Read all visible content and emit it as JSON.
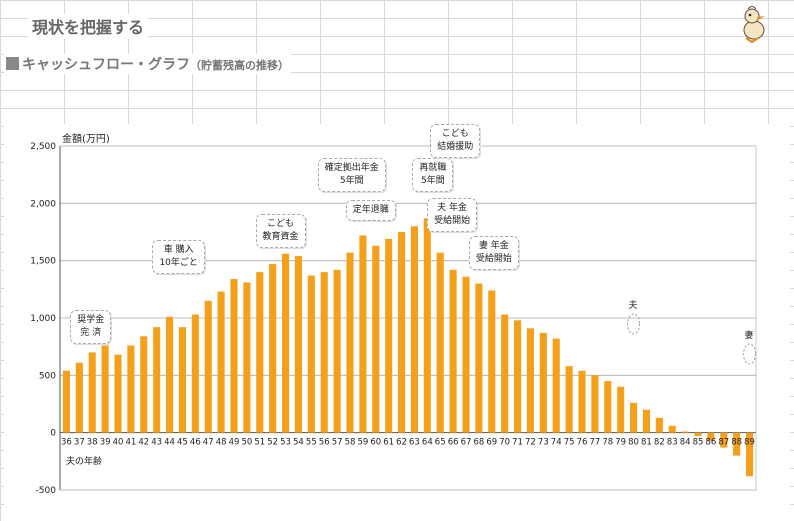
{
  "header": {
    "title": "現状を把握する",
    "section_title": "キャッシュフロー・グラフ",
    "section_sub": "（貯蓄残高の推移）"
  },
  "colors": {
    "bar": "#f5a01a",
    "grid": "#aaaaaa",
    "text": "#222222"
  },
  "chart_data": {
    "type": "bar",
    "ylabel": "金額(万円)",
    "xlabel": "夫の年齢",
    "ylim": [
      -500,
      2500
    ],
    "yticks": [
      -500,
      0,
      500,
      1000,
      1500,
      2000,
      2500
    ],
    "ytick_labels": [
      "-500",
      "0",
      "500",
      "1,000",
      "1,500",
      "2,000",
      "2,500"
    ],
    "grid": true,
    "categories": [
      "36",
      "37",
      "38",
      "39",
      "40",
      "41",
      "42",
      "43",
      "44",
      "45",
      "46",
      "47",
      "48",
      "49",
      "50",
      "51",
      "52",
      "53",
      "54",
      "55",
      "56",
      "57",
      "58",
      "59",
      "60",
      "61",
      "62",
      "63",
      "64",
      "65",
      "66",
      "67",
      "68",
      "69",
      "70",
      "71",
      "72",
      "73",
      "74",
      "75",
      "76",
      "77",
      "78",
      "79",
      "80",
      "81",
      "82",
      "83",
      "84",
      "85",
      "86",
      "87",
      "88",
      "89"
    ],
    "values": [
      540,
      610,
      700,
      760,
      680,
      760,
      840,
      920,
      1010,
      920,
      1030,
      1150,
      1230,
      1340,
      1310,
      1400,
      1470,
      1560,
      1540,
      1370,
      1400,
      1420,
      1570,
      1720,
      1630,
      1690,
      1750,
      1800,
      1870,
      1570,
      1420,
      1360,
      1300,
      1240,
      1030,
      980,
      910,
      870,
      820,
      580,
      540,
      500,
      450,
      400,
      260,
      200,
      130,
      60,
      10,
      -30,
      -70,
      -130,
      -200,
      -380
    ],
    "annotations": [
      {
        "text": "奨学金\n完 済",
        "category": "38"
      },
      {
        "text": "車 購入\n10年ごと",
        "category": "45"
      },
      {
        "text": "こども\n教育資金",
        "category": "53"
      },
      {
        "text": "確定拠出年金\n5年間",
        "category": "60"
      },
      {
        "text": "定年退職",
        "category": "60"
      },
      {
        "text": "再就職\n5年間",
        "category": "64"
      },
      {
        "text": "こども\n結婚援助",
        "category": "65"
      },
      {
        "text": "夫 年金\n受給開始",
        "category": "66"
      },
      {
        "text": "妻 年金\n受給開始",
        "category": "68"
      }
    ],
    "markers": [
      {
        "text": "夫",
        "category": "80"
      },
      {
        "text": "妻",
        "category": "89"
      }
    ]
  }
}
